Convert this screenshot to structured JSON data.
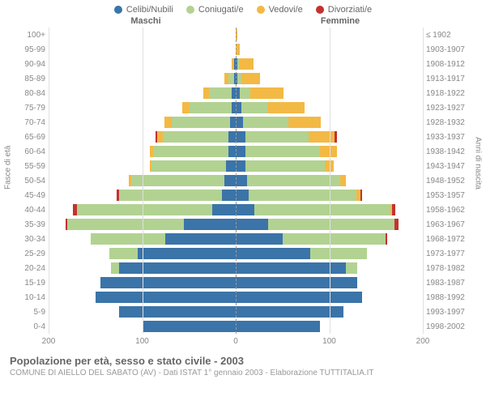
{
  "legend": [
    {
      "label": "Celibi/Nubili",
      "color": "#3b74a8"
    },
    {
      "label": "Coniugati/e",
      "color": "#b2d292"
    },
    {
      "label": "Vedovi/e",
      "color": "#f3b945"
    },
    {
      "label": "Divorziati/e",
      "color": "#c4322f"
    }
  ],
  "headers": {
    "left": "Maschi",
    "right": "Femmine"
  },
  "axis": {
    "xmax": 200,
    "ticks_left": [
      200,
      100,
      0
    ],
    "ticks_right": [
      100,
      200
    ],
    "left_title": "Fasce di età",
    "right_title": "Anni di nascita"
  },
  "colors": {
    "grid": "#e0e0e0",
    "center": "#999999",
    "background": "#ffffff"
  },
  "rows": [
    {
      "age": "100+",
      "year": "≤ 1902",
      "m": [
        0,
        0,
        0,
        0
      ],
      "f": [
        0,
        0,
        2,
        0
      ]
    },
    {
      "age": "95-99",
      "year": "1903-1907",
      "m": [
        0,
        0,
        0,
        0
      ],
      "f": [
        0,
        0,
        4,
        0
      ]
    },
    {
      "age": "90-94",
      "year": "1908-1912",
      "m": [
        2,
        0,
        2,
        0
      ],
      "f": [
        2,
        2,
        15,
        0
      ]
    },
    {
      "age": "85-89",
      "year": "1913-1917",
      "m": [
        2,
        6,
        4,
        0
      ],
      "f": [
        2,
        4,
        20,
        0
      ]
    },
    {
      "age": "80-84",
      "year": "1918-1922",
      "m": [
        4,
        25,
        6,
        0
      ],
      "f": [
        4,
        12,
        35,
        0
      ]
    },
    {
      "age": "75-79",
      "year": "1923-1927",
      "m": [
        4,
        45,
        8,
        0
      ],
      "f": [
        6,
        28,
        40,
        0
      ]
    },
    {
      "age": "70-74",
      "year": "1928-1932",
      "m": [
        6,
        62,
        8,
        0
      ],
      "f": [
        8,
        48,
        35,
        0
      ]
    },
    {
      "age": "65-69",
      "year": "1933-1937",
      "m": [
        8,
        70,
        6,
        2
      ],
      "f": [
        10,
        68,
        28,
        2
      ]
    },
    {
      "age": "60-64",
      "year": "1938-1942",
      "m": [
        8,
        80,
        4,
        0
      ],
      "f": [
        10,
        80,
        18,
        0
      ]
    },
    {
      "age": "55-59",
      "year": "1943-1947",
      "m": [
        10,
        80,
        2,
        0
      ],
      "f": [
        10,
        85,
        10,
        0
      ]
    },
    {
      "age": "50-54",
      "year": "1948-1952",
      "m": [
        12,
        100,
        2,
        0
      ],
      "f": [
        12,
        100,
        6,
        0
      ]
    },
    {
      "age": "45-49",
      "year": "1953-1957",
      "m": [
        15,
        110,
        0,
        2
      ],
      "f": [
        14,
        115,
        4,
        2
      ]
    },
    {
      "age": "40-44",
      "year": "1958-1962",
      "m": [
        25,
        145,
        0,
        4
      ],
      "f": [
        20,
        145,
        2,
        4
      ]
    },
    {
      "age": "35-39",
      "year": "1963-1967",
      "m": [
        55,
        125,
        0,
        2
      ],
      "f": [
        35,
        135,
        0,
        4
      ]
    },
    {
      "age": "30-34",
      "year": "1968-1972",
      "m": [
        75,
        80,
        0,
        0
      ],
      "f": [
        50,
        110,
        0,
        2
      ]
    },
    {
      "age": "25-29",
      "year": "1973-1977",
      "m": [
        105,
        30,
        0,
        0
      ],
      "f": [
        80,
        60,
        0,
        0
      ]
    },
    {
      "age": "20-24",
      "year": "1978-1982",
      "m": [
        125,
        8,
        0,
        0
      ],
      "f": [
        118,
        12,
        0,
        0
      ]
    },
    {
      "age": "15-19",
      "year": "1983-1987",
      "m": [
        145,
        0,
        0,
        0
      ],
      "f": [
        130,
        0,
        0,
        0
      ]
    },
    {
      "age": "10-14",
      "year": "1988-1992",
      "m": [
        150,
        0,
        0,
        0
      ],
      "f": [
        135,
        0,
        0,
        0
      ]
    },
    {
      "age": "5-9",
      "year": "1993-1997",
      "m": [
        125,
        0,
        0,
        0
      ],
      "f": [
        115,
        0,
        0,
        0
      ]
    },
    {
      "age": "0-4",
      "year": "1998-2002",
      "m": [
        100,
        0,
        0,
        0
      ],
      "f": [
        90,
        0,
        0,
        0
      ]
    }
  ],
  "footer": {
    "title": "Popolazione per età, sesso e stato civile - 2003",
    "sub": "COMUNE DI AIELLO DEL SABATO (AV) - Dati ISTAT 1° gennaio 2003 - Elaborazione TUTTITALIA.IT"
  }
}
